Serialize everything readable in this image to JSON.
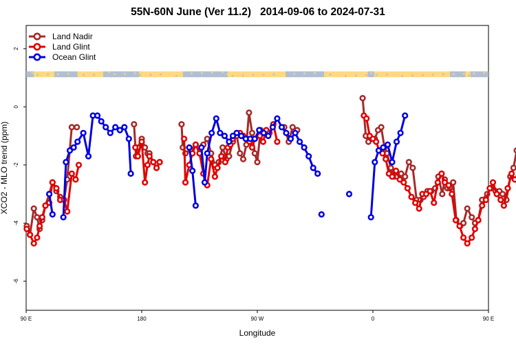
{
  "chart_data": {
    "type": "line",
    "title": "55N-60N June (Ver 11.2)   2014-09-06 to 2024-07-31",
    "xlabel": "Longitude",
    "ylabel": "XCO2 - MLO trend (ppm)",
    "x_range": [
      90,
      450
    ],
    "ylim": [
      -7,
      2.8
    ],
    "x_ticks": [
      {
        "value": 90,
        "label": "90 E"
      },
      {
        "value": 180,
        "label": "180"
      },
      {
        "value": 270,
        "label": "90 W"
      },
      {
        "value": 360,
        "label": "0"
      },
      {
        "value": 450,
        "label": "90 E"
      },
      {
        "value": 540,
        "label": "180"
      }
    ],
    "y_ticks": [
      -6,
      -4,
      -2,
      0,
      2
    ],
    "legend": {
      "position": "top-left"
    },
    "grid": false,
    "land_ocean_strip": {
      "y_range": [
        1.02,
        1.22
      ],
      "land_color": "#FFD980",
      "ocean_color": "#A9BCD9"
    },
    "series": [
      {
        "name": "Land Nadir",
        "color": "#A52A2A",
        "segments": [
          [
            [
              90.5,
              -4.1
            ],
            [
              93,
              -4.4
            ],
            [
              96,
              -3.5
            ],
            [
              98.5,
              -3.8
            ],
            [
              100.5,
              -4.2
            ],
            [
              102.5,
              -3.9
            ],
            [
              105,
              -3.4
            ],
            [
              108,
              -3.0
            ],
            [
              110.5,
              -2.6
            ],
            [
              113.5,
              -2.9
            ],
            [
              116.5,
              -3.1
            ],
            [
              119.5,
              -3.2
            ],
            [
              122,
              -2.5
            ],
            [
              125.5,
              -0.7
            ],
            [
              129.5,
              -0.7
            ]
          ],
          [
            [
              174,
              -0.6
            ],
            [
              175.5,
              -1.7
            ],
            [
              177,
              -1.4
            ],
            [
              180,
              -1.1
            ],
            [
              182.5,
              -1.4
            ],
            [
              184.5,
              -1.6
            ],
            [
              186,
              -1.6
            ],
            [
              189,
              -1.9
            ],
            [
              191.5,
              -2.1
            ],
            [
              194,
              -1.9
            ]
          ],
          [
            [
              211,
              -0.6
            ],
            [
              212,
              -1.4
            ],
            [
              214,
              -1.6
            ],
            [
              218,
              -1.5
            ],
            [
              222,
              -1.3
            ],
            [
              225,
              -1.6
            ],
            [
              228,
              -1.3
            ],
            [
              231,
              -1.1
            ],
            [
              234,
              -1.6
            ],
            [
              237,
              -2.0
            ],
            [
              240,
              -1.9
            ],
            [
              243,
              -1.4
            ],
            [
              246,
              -1.8
            ],
            [
              248,
              -1.7
            ],
            [
              251,
              -1.2
            ],
            [
              254,
              -1.0
            ],
            [
              256.5,
              -1.6
            ],
            [
              259,
              -1.8
            ],
            [
              261.5,
              -1.3
            ],
            [
              263.5,
              -0.2
            ],
            [
              266,
              -0.9
            ],
            [
              268,
              -1.6
            ],
            [
              270,
              -1.9
            ],
            [
              272.5,
              -0.8
            ]
          ],
          [
            [
              291,
              -0.7
            ],
            [
              294.5,
              -1.2
            ],
            [
              297.5,
              -0.7
            ],
            [
              301,
              -0.8
            ]
          ],
          [
            [
              352,
              0.3
            ],
            [
              354.5,
              -1.0
            ],
            [
              356.5,
              -1.2
            ],
            [
              359,
              -1.1
            ],
            [
              361.5,
              -1.1
            ],
            [
              364,
              -0.8
            ],
            [
              366.5,
              -0.7
            ],
            [
              369,
              -1.4
            ],
            [
              371,
              -1.6
            ],
            [
              374,
              -2.1
            ],
            [
              376.5,
              -2.4
            ],
            [
              379,
              -2.4
            ],
            [
              382,
              -2.3
            ],
            [
              385,
              -2.4
            ],
            [
              388,
              -1.9
            ],
            [
              391,
              -2.1
            ],
            [
              394,
              -3.2
            ],
            [
              397,
              -3.2
            ],
            [
              399.5,
              -3.1
            ],
            [
              402.5,
              -2.9
            ],
            [
              405.5,
              -2.9
            ],
            [
              408.5,
              -2.8
            ],
            [
              411,
              -2.4
            ],
            [
              414,
              -3.0
            ],
            [
              416,
              -2.5
            ],
            [
              418,
              -2.8
            ],
            [
              420,
              -2.8
            ],
            [
              422.5,
              -2.6
            ],
            [
              425,
              -3.9
            ],
            [
              428,
              -4.1
            ],
            [
              430.5,
              -4.0
            ],
            [
              433.5,
              -3.5
            ],
            [
              437,
              -3.8
            ],
            [
              439.5,
              -4.0
            ],
            [
              442,
              -3.9
            ],
            [
              445,
              -3.2
            ],
            [
              449,
              -3.0
            ],
            [
              452,
              -2.8
            ],
            [
              455.5,
              -2.9
            ],
            [
              458.5,
              -2.9
            ],
            [
              461,
              -3.0
            ],
            [
              464,
              -3.2
            ],
            [
              467,
              -2.4
            ],
            [
              469.5,
              -2.1
            ],
            [
              472,
              -1.5
            ],
            [
              474.5,
              -0.7
            ],
            [
              478,
              -0.7
            ]
          ]
        ]
      },
      {
        "name": "Land Glint",
        "color": "#E00000",
        "segments": [
          [
            [
              90.5,
              -4.2
            ],
            [
              93,
              -4.4
            ],
            [
              96,
              -4.7
            ],
            [
              98.5,
              -4.5
            ],
            [
              100.5,
              -4.1
            ],
            [
              102.5,
              -3.8
            ],
            [
              105,
              -3.4
            ],
            [
              108,
              -3.3
            ],
            [
              110.5,
              -2.6
            ],
            [
              113.5,
              -2.8
            ],
            [
              116.5,
              -3.2
            ],
            [
              119.5,
              -3.2
            ],
            [
              122,
              -3.6
            ],
            [
              125.5,
              -2.3
            ],
            [
              128.5,
              -2.5
            ],
            [
              131,
              -2.0
            ]
          ],
          [
            [
              175,
              -1.4
            ],
            [
              177,
              -1.7
            ],
            [
              180,
              -1.2
            ],
            [
              182.5,
              -2.6
            ],
            [
              184.5,
              -2.0
            ],
            [
              186,
              -1.7
            ],
            [
              189,
              -1.9
            ],
            [
              191.5,
              -2.1
            ],
            [
              194,
              -1.9
            ]
          ],
          [
            [
              213,
              -1.1
            ],
            [
              214,
              -2.6
            ],
            [
              217,
              -2.0
            ],
            [
              219.5,
              -1.6
            ],
            [
              222,
              -1.3
            ],
            [
              225,
              -1.6
            ],
            [
              228,
              -2.3
            ],
            [
              231,
              -2.7
            ],
            [
              234,
              -1.8
            ],
            [
              237,
              -2.4
            ],
            [
              239,
              -2.1
            ],
            [
              242,
              -1.7
            ],
            [
              245,
              -1.9
            ],
            [
              247,
              -1.4
            ],
            [
              249,
              -1.3
            ],
            [
              251,
              -1.1
            ],
            [
              254,
              -0.9
            ],
            [
              256.5,
              -0.9
            ],
            [
              259,
              -1.0
            ],
            [
              262,
              -1.1
            ],
            [
              264,
              -1.2
            ],
            [
              266,
              -1.4
            ],
            [
              268,
              -1.1
            ],
            [
              272,
              -1.0
            ],
            [
              274.5,
              -1.2
            ],
            [
              277,
              -0.8
            ],
            [
              279.5,
              -0.9
            ],
            [
              282.5,
              -0.6
            ],
            [
              285.5,
              -1.2
            ]
          ],
          [
            [
              353,
              -0.3
            ],
            [
              355,
              -0.4
            ],
            [
              357.5,
              -1.0
            ],
            [
              360,
              -1.1
            ],
            [
              362.5,
              -1.2
            ],
            [
              365,
              -1.5
            ],
            [
              367.5,
              -1.6
            ],
            [
              370,
              -1.8
            ],
            [
              372.5,
              -2.3
            ],
            [
              375,
              -2.4
            ],
            [
              378,
              -2.2
            ],
            [
              381,
              -2.5
            ],
            [
              384,
              -2.6
            ],
            [
              387,
              -2.8
            ],
            [
              390,
              -3.1
            ],
            [
              393,
              -3.3
            ],
            [
              396,
              -3.5
            ],
            [
              398.5,
              -3.0
            ],
            [
              401.5,
              -3.0
            ],
            [
              404.5,
              -2.9
            ],
            [
              407.5,
              -3.3
            ],
            [
              410.5,
              -2.6
            ],
            [
              413.5,
              -2.3
            ],
            [
              416,
              -2.6
            ],
            [
              419,
              -2.7
            ],
            [
              421.5,
              -3.0
            ],
            [
              424.5,
              -3.9
            ],
            [
              427.5,
              -4.1
            ],
            [
              430.5,
              -4.5
            ],
            [
              433.5,
              -4.7
            ],
            [
              437,
              -4.5
            ],
            [
              439.5,
              -4.2
            ],
            [
              442,
              -3.9
            ],
            [
              445,
              -3.4
            ],
            [
              448,
              -3.2
            ],
            [
              451,
              -2.8
            ],
            [
              453.5,
              -2.6
            ],
            [
              456.5,
              -3.0
            ],
            [
              459.5,
              -3.2
            ],
            [
              462,
              -3.4
            ],
            [
              465,
              -2.8
            ],
            [
              468,
              -2.3
            ],
            [
              470.5,
              -2.5
            ],
            [
              473.5,
              -2.4
            ]
          ]
        ]
      },
      {
        "name": "Ocean Glint",
        "color": "#0000E0",
        "segments": [
          [
            [
              108,
              -3.0
            ],
            [
              110.5,
              -3.7
            ]
          ],
          [
            [
              119,
              -3.8
            ],
            [
              121,
              -1.9
            ],
            [
              124,
              -1.5
            ],
            [
              127,
              -1.4
            ],
            [
              130,
              -1.2
            ],
            [
              134.5,
              -0.9
            ],
            [
              138.5,
              -1.7
            ],
            [
              142,
              -0.3
            ],
            [
              145.5,
              -0.3
            ],
            [
              148.5,
              -0.5
            ],
            [
              152,
              -0.7
            ],
            [
              155.5,
              -0.9
            ],
            [
              159.5,
              -0.7
            ],
            [
              163,
              -0.8
            ],
            [
              166.5,
              -0.7
            ],
            [
              170,
              -1.1
            ],
            [
              171.5,
              -2.3
            ]
          ],
          [
            [
              217,
              -1.4
            ],
            [
              219.5,
              -2.2
            ],
            [
              222,
              -3.4
            ]
          ],
          [
            [
              226.5,
              -1.4
            ],
            [
              229,
              -2.6
            ],
            [
              231,
              -1.6
            ],
            [
              234.5,
              -0.9
            ],
            [
              238,
              -0.4
            ],
            [
              241,
              -0.9
            ],
            [
              244.5,
              -1.0
            ],
            [
              248,
              -1.2
            ],
            [
              251,
              -1.0
            ],
            [
              254,
              -0.9
            ],
            [
              257.5,
              -1.0
            ],
            [
              261,
              -1.1
            ],
            [
              264.5,
              -1.1
            ],
            [
              268,
              -1.1
            ],
            [
              271.5,
              -0.8
            ],
            [
              275,
              -0.9
            ],
            [
              278.5,
              -1.0
            ],
            [
              282,
              -0.7
            ],
            [
              285.5,
              -0.4
            ],
            [
              289,
              -0.7
            ],
            [
              292.5,
              -0.9
            ],
            [
              296,
              -1.1
            ],
            [
              299.5,
              -0.9
            ],
            [
              303,
              -1.2
            ],
            [
              306.5,
              -1.4
            ],
            [
              310,
              -1.7
            ],
            [
              313.5,
              -2.1
            ],
            [
              317,
              -2.3
            ]
          ],
          [
            [
              320,
              -3.7
            ]
          ],
          [
            [
              341.5,
              -3.0
            ]
          ],
          [
            [
              358.5,
              -3.8
            ],
            [
              361.5,
              -1.9
            ],
            [
              364.5,
              -1.5
            ],
            [
              368,
              -1.4
            ],
            [
              371.5,
              -1.3
            ],
            [
              375,
              -1.9
            ],
            [
              378.5,
              -1.2
            ],
            [
              381.5,
              -0.9
            ],
            [
              385,
              -0.3
            ]
          ]
        ]
      }
    ]
  }
}
